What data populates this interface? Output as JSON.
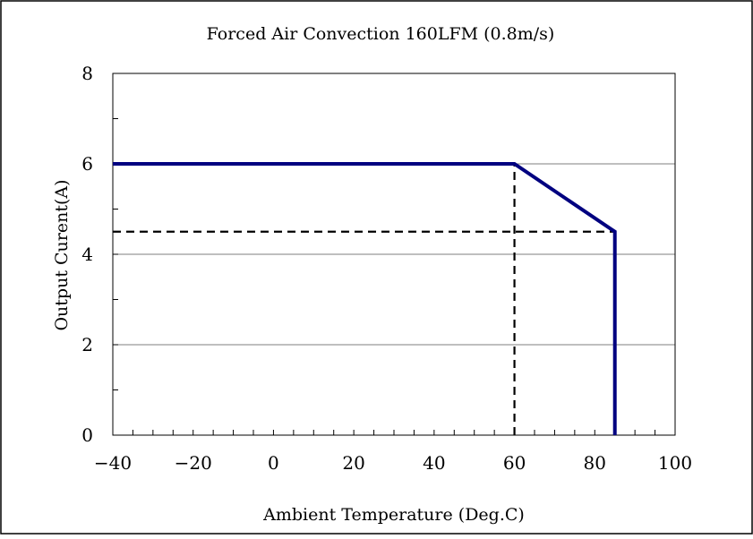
{
  "chart_data": {
    "type": "line",
    "title": "Forced Air Convection 160LFM (0.8m/s)",
    "xlabel": "Ambient Temperature (Deg.C)",
    "ylabel": "Output Curent(A)",
    "xlim": [
      -40,
      100
    ],
    "ylim": [
      0,
      8
    ],
    "x_ticks": [
      "-40",
      "-20",
      "0",
      "20",
      "40",
      "60",
      "80",
      "100"
    ],
    "y_ticks": [
      "0",
      "2",
      "4",
      "6",
      "8"
    ],
    "grid": "horizontal",
    "series": [
      {
        "color": "#000080",
        "style": "solid",
        "x": [
          -40,
          60,
          85,
          85
        ],
        "y": [
          6,
          6,
          4.5,
          0
        ]
      }
    ],
    "reference_lines": [
      {
        "color": "#000000",
        "style": "dashed",
        "x": [
          60,
          60
        ],
        "y": [
          0,
          6
        ]
      },
      {
        "color": "#000000",
        "style": "dashed",
        "x": [
          -40,
          85
        ],
        "y": [
          4.5,
          4.5
        ]
      }
    ]
  }
}
